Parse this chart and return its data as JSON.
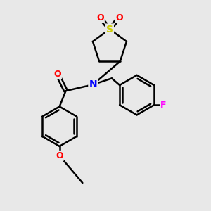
{
  "bg_color": "#e8e8e8",
  "atom_colors": {
    "O": "#ff0000",
    "N": "#0000ff",
    "S": "#cccc00",
    "F": "#ff00ff",
    "C": "#000000"
  },
  "bond_color": "#000000",
  "bond_width": 1.8,
  "font_size": 9,
  "fig_size": [
    3.0,
    3.0
  ],
  "dpi": 100
}
